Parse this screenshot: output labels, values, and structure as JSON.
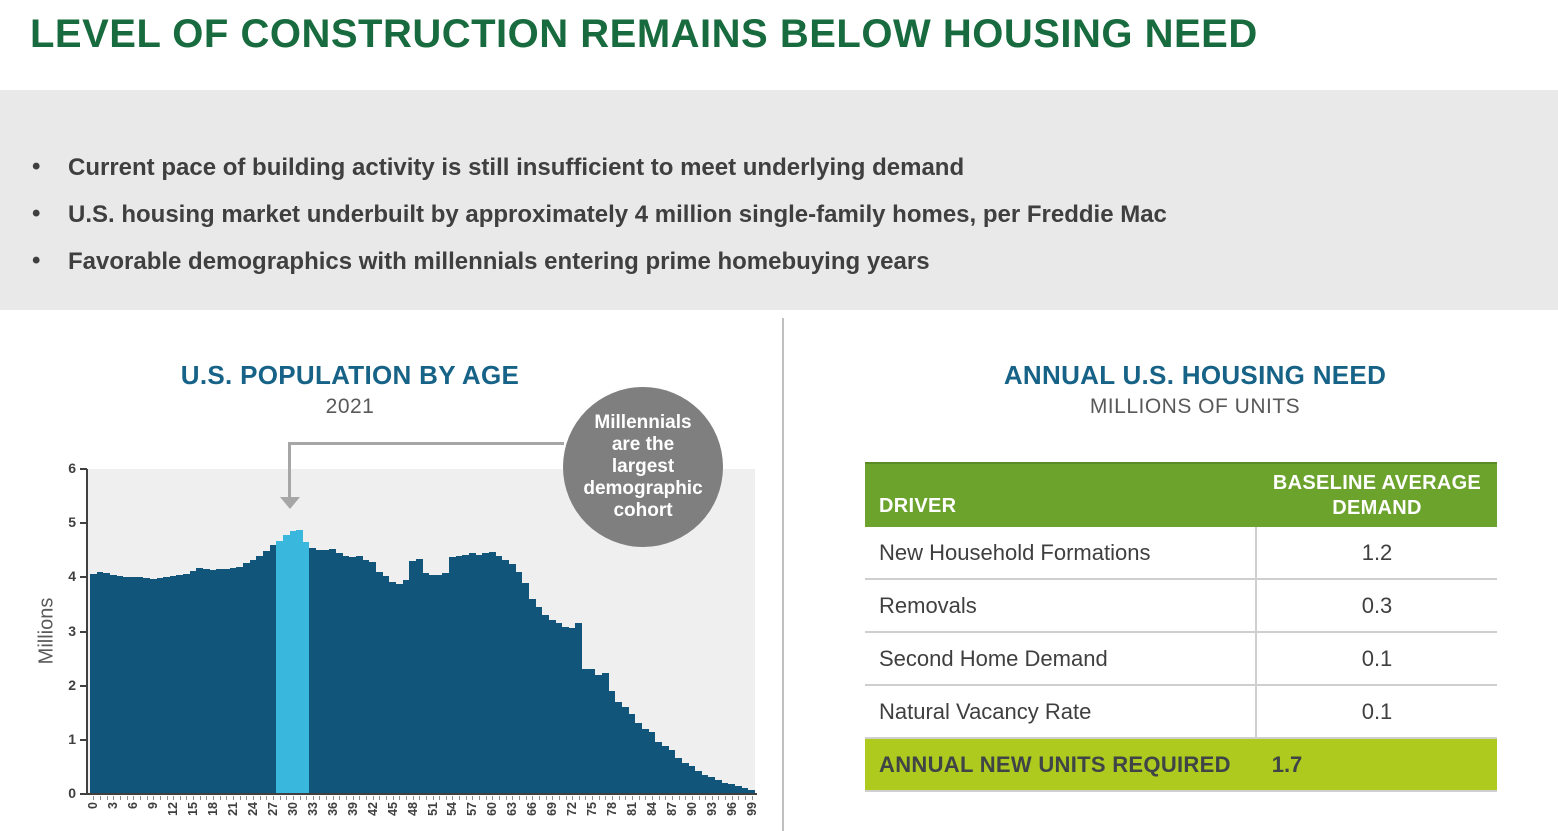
{
  "slide": {
    "title": "LEVEL OF CONSTRUCTION REMAINS BELOW HOUSING NEED",
    "bullets": [
      "Current pace of building activity is still insufficient to meet underlying demand",
      "U.S. housing market underbuilt by approximately 4 million single-family homes, per Freddie Mac",
      "Favorable demographics with millennials entering prime homebuying years"
    ]
  },
  "chart_data": [
    {
      "type": "bar",
      "title": "U.S. POPULATION BY AGE",
      "subtitle": "2021",
      "xlabel": "",
      "ylabel": "Millions",
      "ylim": [
        0,
        6
      ],
      "y_ticks": [
        0,
        1,
        2,
        3,
        4,
        5,
        6
      ],
      "x_min": 0,
      "x_max": 99,
      "x_tick_labels": [
        0,
        3,
        6,
        9,
        12,
        15,
        18,
        21,
        24,
        27,
        30,
        33,
        36,
        39,
        42,
        45,
        48,
        51,
        54,
        57,
        60,
        63,
        66,
        69,
        72,
        75,
        78,
        81,
        84,
        87,
        90,
        93,
        96,
        99
      ],
      "values": [
        4.07,
        4.1,
        4.08,
        4.05,
        4.02,
        4.01,
        4.01,
        4.0,
        3.99,
        3.97,
        3.98,
        4.0,
        4.02,
        4.04,
        4.06,
        4.12,
        4.17,
        4.15,
        4.14,
        4.16,
        4.15,
        4.17,
        4.2,
        4.27,
        4.33,
        4.4,
        4.48,
        4.6,
        4.68,
        4.78,
        4.85,
        4.87,
        4.65,
        4.55,
        4.5,
        4.5,
        4.53,
        4.45,
        4.4,
        4.37,
        4.4,
        4.33,
        4.28,
        4.1,
        4.02,
        3.92,
        3.88,
        3.95,
        4.3,
        4.34,
        4.08,
        4.05,
        4.05,
        4.08,
        4.37,
        4.4,
        4.42,
        4.45,
        4.42,
        4.45,
        4.47,
        4.4,
        4.32,
        4.25,
        4.1,
        3.9,
        3.6,
        3.45,
        3.3,
        3.22,
        3.15,
        3.08,
        3.06,
        3.15,
        2.3,
        2.3,
        2.2,
        2.24,
        1.9,
        1.7,
        1.6,
        1.47,
        1.32,
        1.2,
        1.14,
        0.97,
        0.88,
        0.82,
        0.67,
        0.58,
        0.51,
        0.42,
        0.36,
        0.31,
        0.26,
        0.21,
        0.18,
        0.14,
        0.11,
        0.08
      ],
      "highlight": {
        "start_age": 28,
        "end_age": 32
      },
      "annotation": "Millennials are the largest demographic cohort",
      "grid": false,
      "legend": false
    },
    {
      "type": "table",
      "title": "ANNUAL U.S. HOUSING NEED",
      "subtitle": "MILLIONS OF UNITS",
      "columns": [
        "DRIVER",
        "BASELINE AVERAGE DEMAND"
      ],
      "rows": [
        [
          "New Household Formations",
          "1.2"
        ],
        [
          "Removals",
          "0.3"
        ],
        [
          "Second Home Demand",
          "0.1"
        ],
        [
          "Natural Vacancy Rate",
          "0.1"
        ]
      ],
      "total_row": [
        "ANNUAL NEW UNITS REQUIRED",
        "1.7"
      ]
    }
  ],
  "colors": {
    "title_green": "#186b3e",
    "heading_blue": "#176287",
    "bullet_band_gray": "#e9e9e9",
    "body_text_gray": "#3f3f3f",
    "subtitle_gray": "#595959",
    "plot_background": "#efefef",
    "bar_blue": "#11567a",
    "bar_highlight_blue": "#3ab7dc",
    "callout_gray": "#7f7f7f",
    "arrow_gray": "#a6a6a6",
    "table_header_green": "#6ba32d",
    "table_total_green": "#aeca1e"
  }
}
